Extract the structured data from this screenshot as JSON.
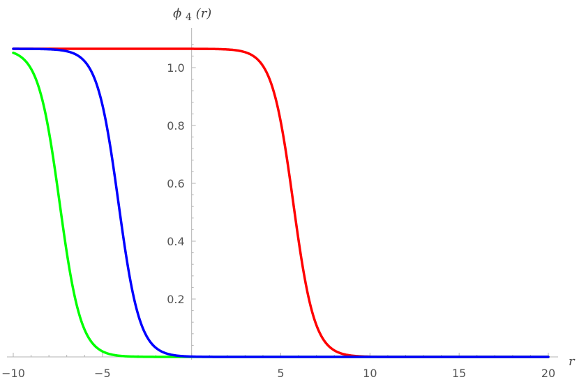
{
  "chart_data": {
    "type": "line",
    "title": "",
    "xlabel": "r",
    "ylabel_main": "ϕ",
    "ylabel_sub": "4",
    "ylabel_arg": "(r)",
    "xlim": [
      -10,
      20
    ],
    "ylim": [
      -0.03,
      1.13
    ],
    "x_ticks": [
      -10,
      -5,
      5,
      10,
      15,
      20
    ],
    "x_tick_labels": [
      "−10",
      "−5",
      "5",
      "10",
      "15",
      "20"
    ],
    "y_ticks": [
      0.2,
      0.4,
      0.6,
      0.8,
      1.0
    ],
    "y_tick_labels": [
      "0.2",
      "0.4",
      "0.6",
      "0.8",
      "1.0"
    ],
    "grid": false,
    "legend": "none",
    "series": [
      {
        "color": "#ff0000",
        "amplitude": 1.065,
        "center": 5.7,
        "width": 0.6
      },
      {
        "color": "#00ff00",
        "amplitude": 1.065,
        "center": -7.4,
        "width": 0.6
      },
      {
        "color": "#0000ff",
        "amplitude": 1.065,
        "center": -4.1,
        "width": 0.6
      }
    ]
  }
}
